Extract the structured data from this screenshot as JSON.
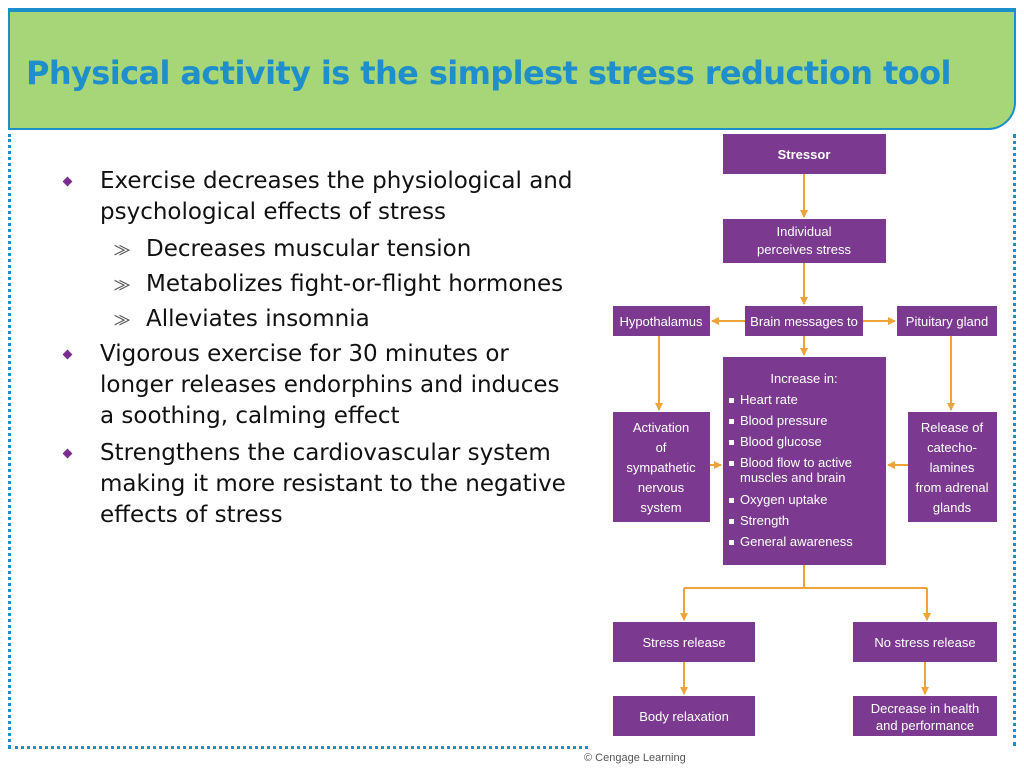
{
  "title": "Physical activity is the simplest stress reduction tool",
  "bullets": [
    {
      "text": "Exercise decreases the physiological and psychological effects of stress",
      "sub": [
        "Decreases muscular tension",
        "Metabolizes fight-or-flight hormones",
        "Alleviates insomnia"
      ]
    },
    {
      "text": "Vigorous exercise for 30 minutes or longer releases endorphins and induces a soothing, calming effect"
    },
    {
      "text": "Strengthens the cardiovascular system making it more resistant to the negative effects of stress"
    }
  ],
  "diagram": {
    "stressor": "Stressor",
    "perceives": [
      "Individual",
      "perceives stress"
    ],
    "hypothalamus": "Hypothalamus",
    "brain": "Brain messages to",
    "pituitary": "Pituitary gland",
    "increase_title": "Increase in:",
    "increase_items": [
      [
        "Heart rate"
      ],
      [
        "Blood pressure"
      ],
      [
        "Blood glucose"
      ],
      [
        "Blood flow to active",
        "muscles and brain"
      ],
      [
        "Oxygen uptake"
      ],
      [
        "Strength"
      ],
      [
        "General awareness"
      ]
    ],
    "activation": [
      "Activation",
      "of",
      "sympathetic",
      "nervous",
      "system"
    ],
    "release": [
      "Release of",
      "catecho-",
      "lamines",
      "from adrenal",
      "glands"
    ],
    "stress_release": "Stress release",
    "no_stress_release": "No stress release",
    "body_relaxation": "Body relaxation",
    "decrease": [
      "Decrease in health",
      "and performance"
    ],
    "colors": {
      "box": "#7b3a8f",
      "arrow": "#f0a33a"
    }
  },
  "copyright": "© Cengage Learning"
}
